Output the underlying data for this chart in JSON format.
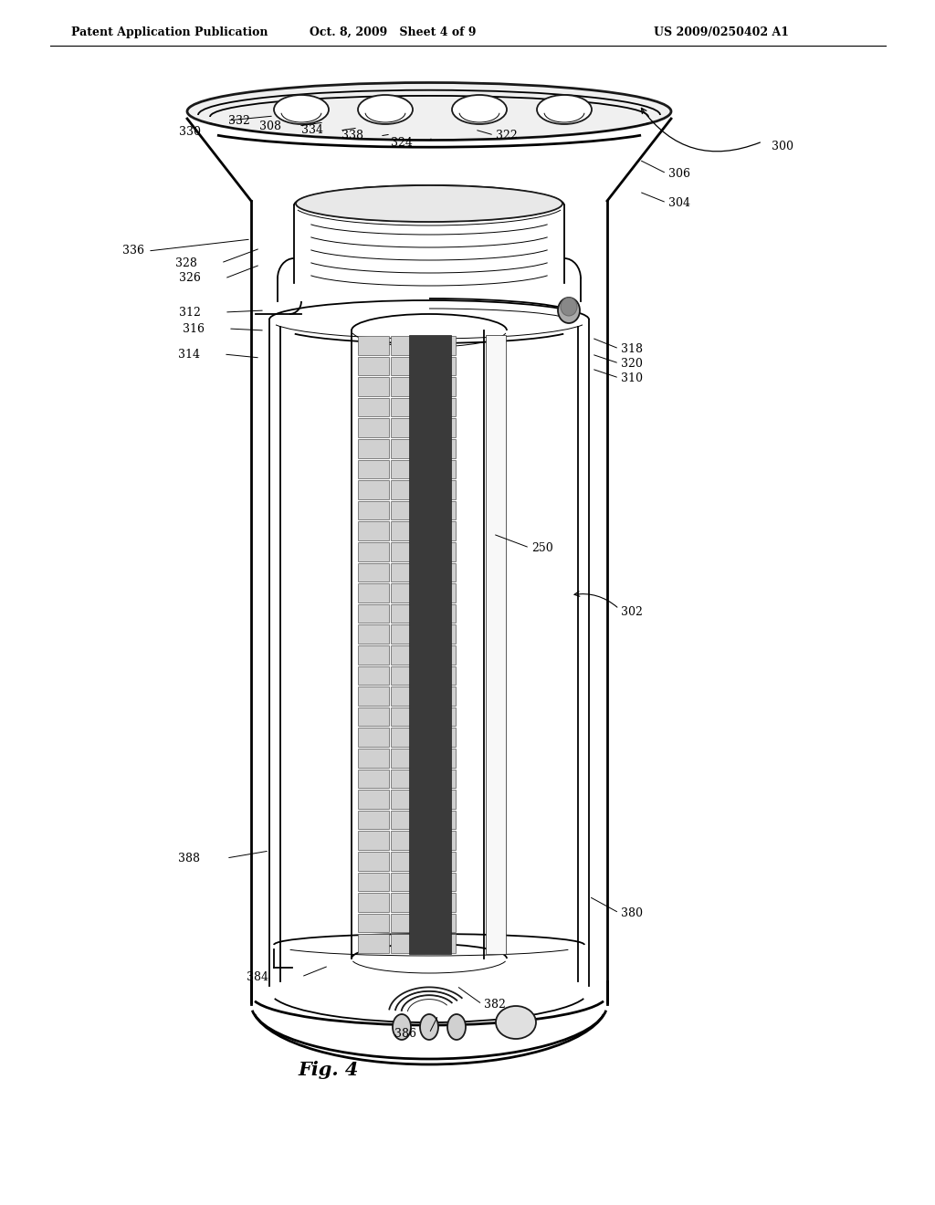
{
  "header_left": "Patent Application Publication",
  "header_middle": "Oct. 8, 2009   Sheet 4 of 9",
  "header_right": "US 2009/0250402 A1",
  "fig_label": "Fig. 4",
  "bg_color": "#ffffff",
  "lc": "#1a1a1a",
  "lw_main": 1.3,
  "lw_thick": 2.0,
  "lw_thin": 0.7,
  "label_fs": 9,
  "header_fs": 9,
  "fig_fs": 15
}
